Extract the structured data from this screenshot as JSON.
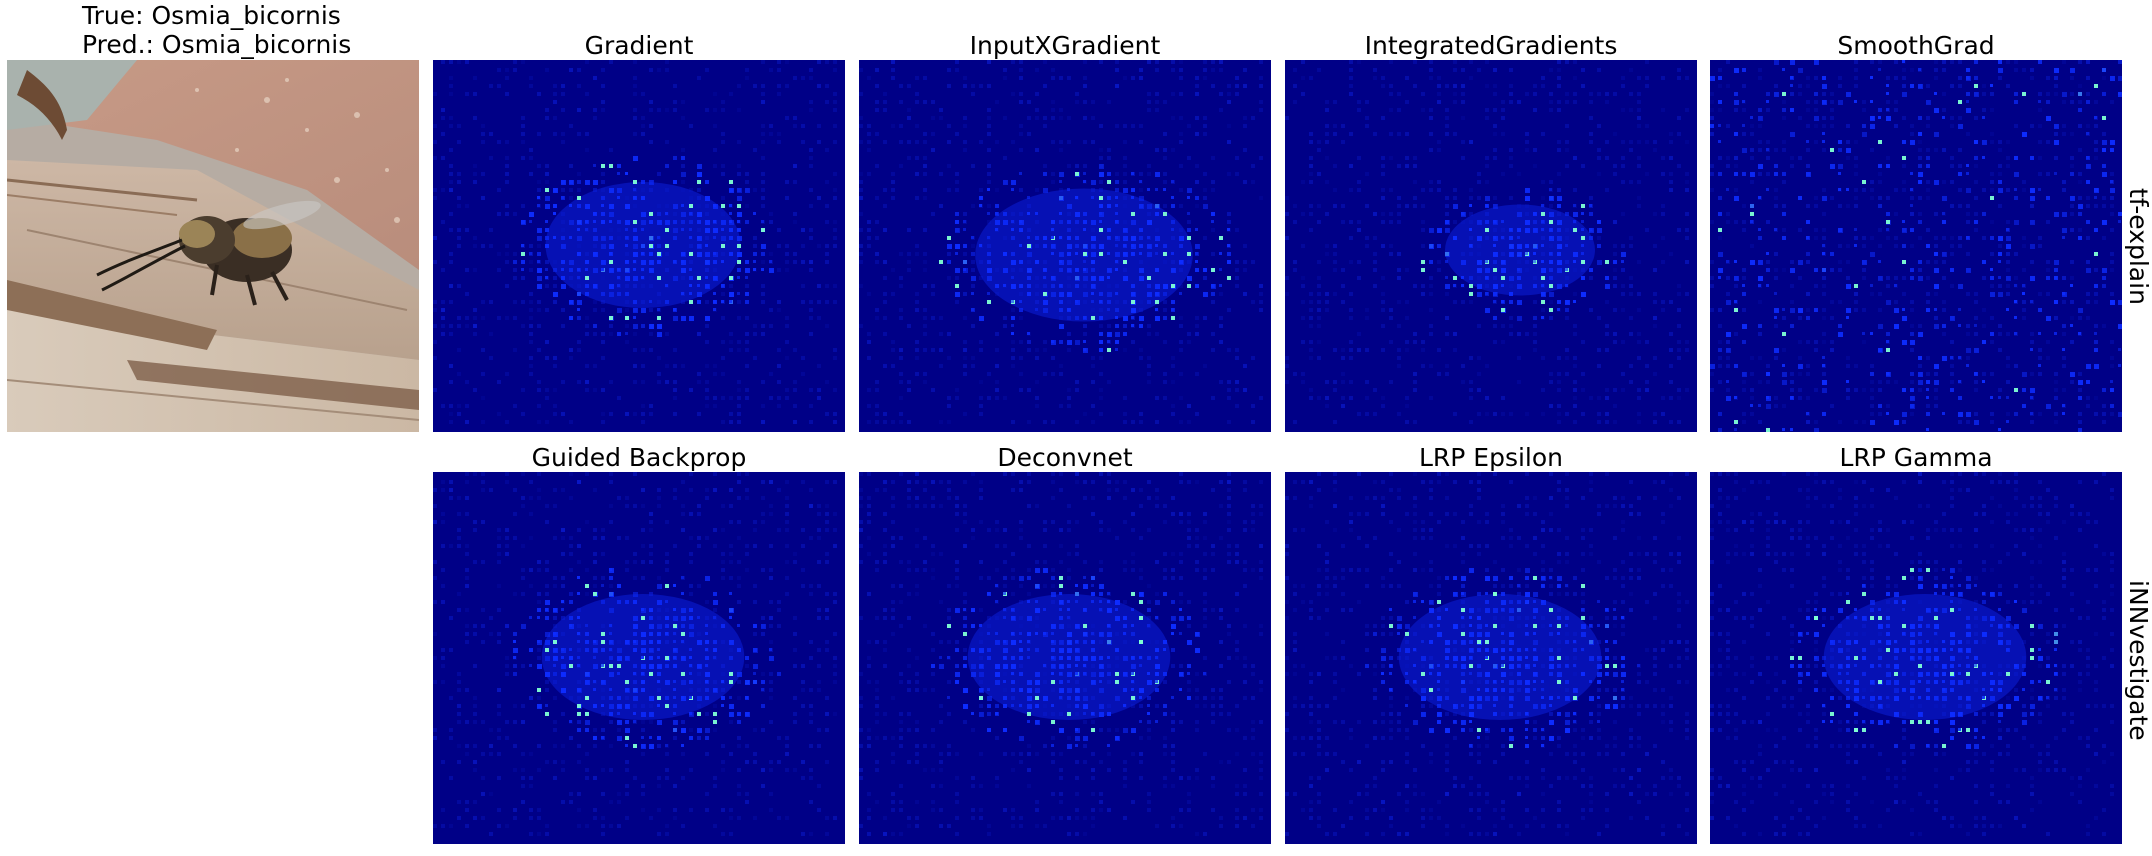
{
  "photo": {
    "true_label": "True: Osmia_bicornis",
    "pred_label": "Pred.: Osmia_bicornis"
  },
  "rows": [
    {
      "label": "tf-explain",
      "methods": [
        "Gradient",
        "InputXGradient",
        "IntegratedGradients",
        "SmoothGrad"
      ]
    },
    {
      "label": "iNNvestigate",
      "methods": [
        "Guided Backprop",
        "Deconvnet",
        "LRP Epsilon",
        "LRP Gamma"
      ]
    }
  ],
  "colors": {
    "heatmap_background": "#000087",
    "heatmap_mid": "#0d2cff",
    "heatmap_hot": "#7fffd4",
    "page_background": "#ffffff"
  }
}
